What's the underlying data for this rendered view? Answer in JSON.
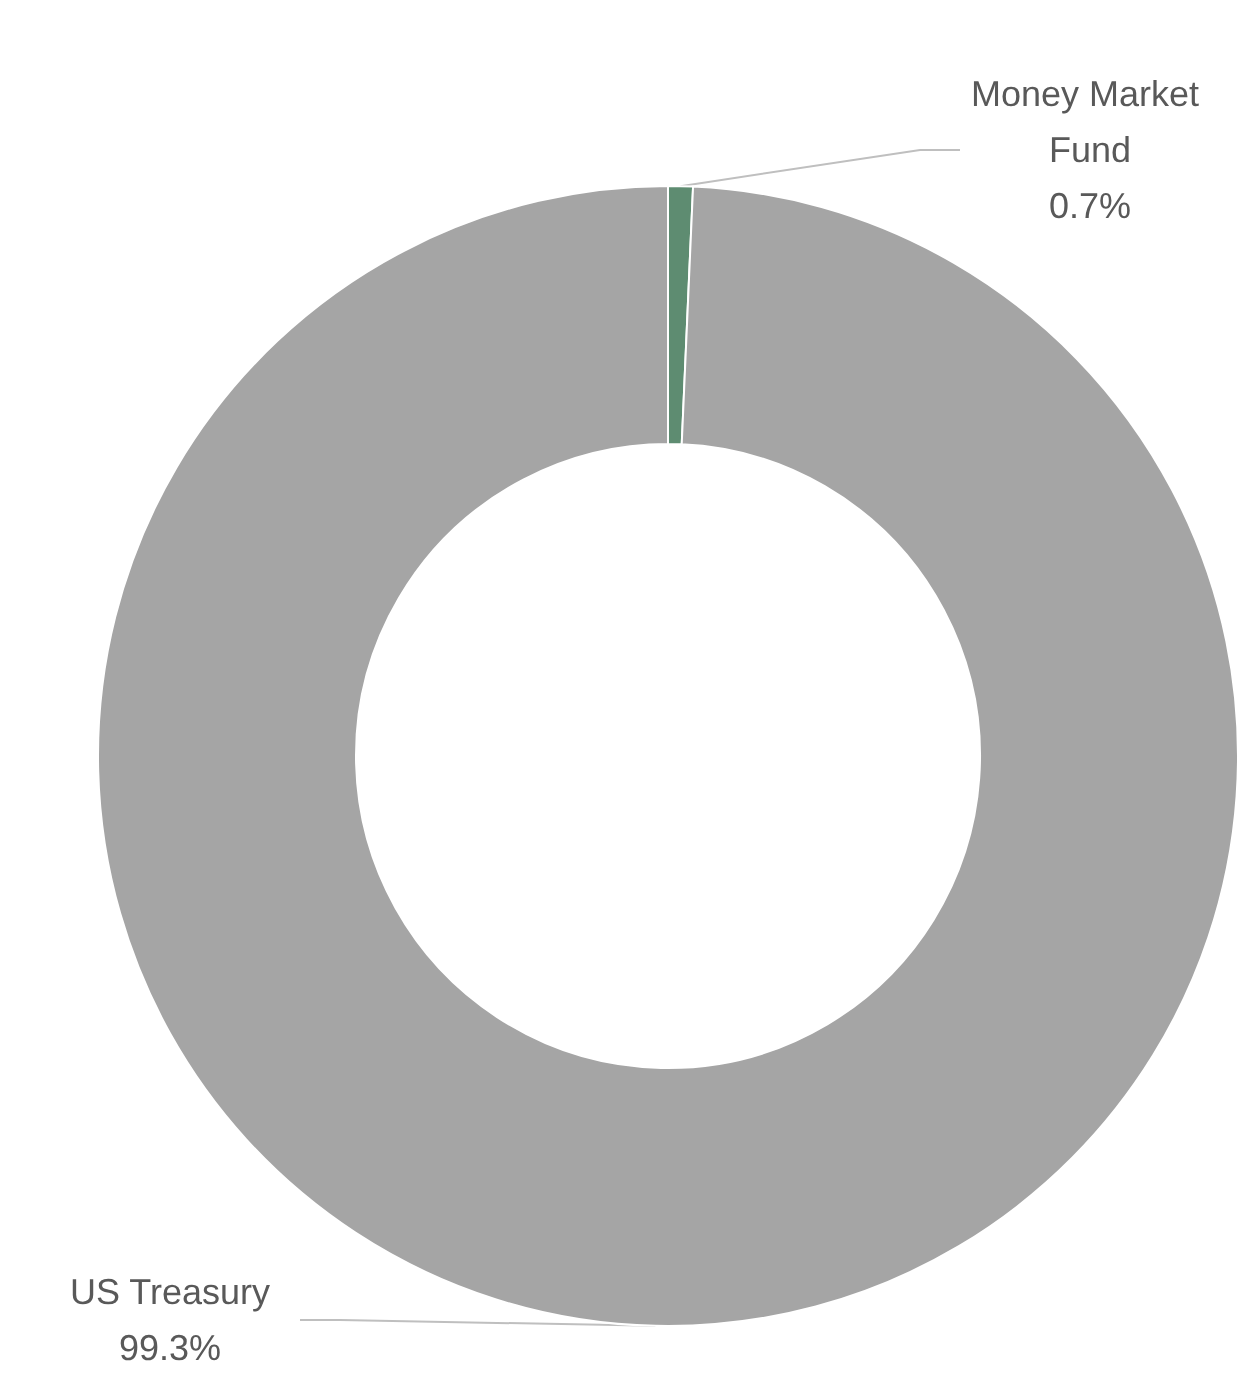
{
  "chart_data": {
    "type": "donut",
    "categories": [
      "Money Market Fund",
      "US Treasury"
    ],
    "values": [
      0.7,
      99.3
    ],
    "value_labels": [
      "0.7%",
      "99.3%"
    ],
    "colors": [
      "#5e8c71",
      "#a5a5a5"
    ],
    "legend": false
  }
}
